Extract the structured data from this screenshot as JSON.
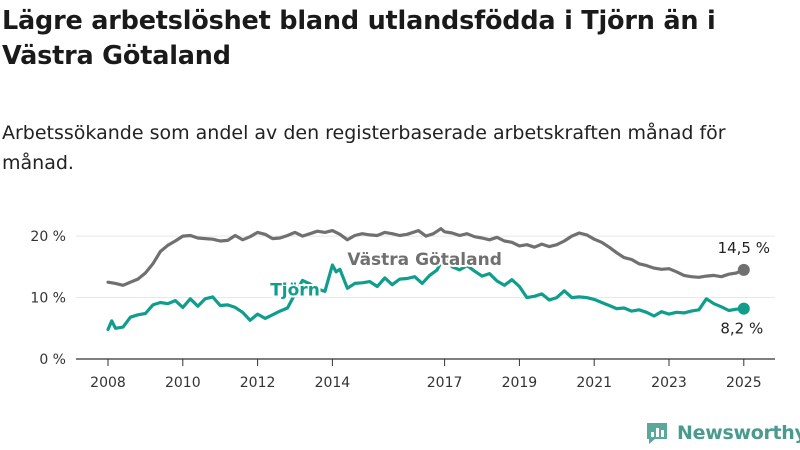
{
  "title": "Lägre arbetslöshet bland utlandsfödda i Tjörn än i Västra Götaland",
  "subtitle": "Arbetssökande som andel av den registerbaserade arbetskraften månad för månad.",
  "brand": {
    "name": "Newsworthy",
    "icon": "newsworthy-logo-icon"
  },
  "colors": {
    "vg": "#707070",
    "tjorn": "#0f9e8c",
    "grid": "#e8e8e8",
    "axis": "#333333"
  },
  "chart_data": {
    "type": "line",
    "xlim": [
      2008,
      2025.4
    ],
    "ylim": [
      0,
      22
    ],
    "yticks": [
      0,
      10,
      20
    ],
    "ytick_labels": [
      "0 %",
      "10 %",
      "20 %"
    ],
    "xticks": [
      2008,
      2010,
      2012,
      2014,
      2017,
      2019,
      2021,
      2023,
      2025
    ],
    "xtick_labels": [
      "2008",
      "2010",
      "2012",
      "2014",
      "2017",
      "2019",
      "2021",
      "2023",
      "2025"
    ],
    "grid": true,
    "series": [
      {
        "name": "Västra Götaland",
        "color": "#707070",
        "end_label": "14,5 %",
        "points": [
          [
            2008.0,
            12.5
          ],
          [
            2008.2,
            12.3
          ],
          [
            2008.4,
            12.0
          ],
          [
            2008.6,
            12.5
          ],
          [
            2008.8,
            13.0
          ],
          [
            2009.0,
            14.0
          ],
          [
            2009.2,
            15.5
          ],
          [
            2009.4,
            17.5
          ],
          [
            2009.6,
            18.5
          ],
          [
            2009.8,
            19.2
          ],
          [
            2010.0,
            20.0
          ],
          [
            2010.2,
            20.1
          ],
          [
            2010.4,
            19.7
          ],
          [
            2010.6,
            19.6
          ],
          [
            2010.8,
            19.5
          ],
          [
            2011.0,
            19.2
          ],
          [
            2011.2,
            19.3
          ],
          [
            2011.4,
            20.1
          ],
          [
            2011.6,
            19.4
          ],
          [
            2011.8,
            19.9
          ],
          [
            2012.0,
            20.6
          ],
          [
            2012.2,
            20.3
          ],
          [
            2012.4,
            19.6
          ],
          [
            2012.6,
            19.7
          ],
          [
            2012.8,
            20.1
          ],
          [
            2013.0,
            20.6
          ],
          [
            2013.2,
            20.0
          ],
          [
            2013.4,
            20.4
          ],
          [
            2013.6,
            20.8
          ],
          [
            2013.8,
            20.6
          ],
          [
            2014.0,
            20.9
          ],
          [
            2014.2,
            20.3
          ],
          [
            2014.4,
            19.4
          ],
          [
            2014.6,
            20.1
          ],
          [
            2014.8,
            20.4
          ],
          [
            2015.0,
            20.2
          ],
          [
            2015.2,
            20.1
          ],
          [
            2015.4,
            20.6
          ],
          [
            2015.6,
            20.4
          ],
          [
            2015.8,
            20.1
          ],
          [
            2016.0,
            20.3
          ],
          [
            2016.3,
            20.9
          ],
          [
            2016.5,
            20.0
          ],
          [
            2016.7,
            20.4
          ],
          [
            2016.9,
            21.2
          ],
          [
            2017.0,
            20.7
          ],
          [
            2017.2,
            20.5
          ],
          [
            2017.4,
            20.1
          ],
          [
            2017.6,
            20.4
          ],
          [
            2017.8,
            19.9
          ],
          [
            2018.0,
            19.7
          ],
          [
            2018.2,
            19.4
          ],
          [
            2018.4,
            19.8
          ],
          [
            2018.6,
            19.2
          ],
          [
            2018.8,
            19.0
          ],
          [
            2019.0,
            18.4
          ],
          [
            2019.2,
            18.6
          ],
          [
            2019.4,
            18.2
          ],
          [
            2019.6,
            18.7
          ],
          [
            2019.8,
            18.3
          ],
          [
            2020.0,
            18.6
          ],
          [
            2020.2,
            19.2
          ],
          [
            2020.4,
            20.0
          ],
          [
            2020.6,
            20.5
          ],
          [
            2020.8,
            20.2
          ],
          [
            2021.0,
            19.5
          ],
          [
            2021.2,
            19.0
          ],
          [
            2021.4,
            18.2
          ],
          [
            2021.6,
            17.3
          ],
          [
            2021.8,
            16.5
          ],
          [
            2022.0,
            16.2
          ],
          [
            2022.2,
            15.5
          ],
          [
            2022.4,
            15.2
          ],
          [
            2022.6,
            14.8
          ],
          [
            2022.8,
            14.6
          ],
          [
            2023.0,
            14.7
          ],
          [
            2023.2,
            14.2
          ],
          [
            2023.4,
            13.6
          ],
          [
            2023.6,
            13.4
          ],
          [
            2023.8,
            13.3
          ],
          [
            2024.0,
            13.5
          ],
          [
            2024.2,
            13.6
          ],
          [
            2024.4,
            13.4
          ],
          [
            2024.6,
            13.8
          ],
          [
            2024.8,
            14.0
          ],
          [
            2025.0,
            14.5
          ]
        ]
      },
      {
        "name": "Tjörn",
        "color": "#0f9e8c",
        "end_label": "8,2 %",
        "points": [
          [
            2008.0,
            4.8
          ],
          [
            2008.1,
            6.2
          ],
          [
            2008.2,
            5.0
          ],
          [
            2008.4,
            5.2
          ],
          [
            2008.6,
            6.8
          ],
          [
            2008.8,
            7.2
          ],
          [
            2009.0,
            7.4
          ],
          [
            2009.2,
            8.8
          ],
          [
            2009.4,
            9.2
          ],
          [
            2009.6,
            9.0
          ],
          [
            2009.8,
            9.5
          ],
          [
            2010.0,
            8.4
          ],
          [
            2010.2,
            9.8
          ],
          [
            2010.4,
            8.6
          ],
          [
            2010.6,
            9.8
          ],
          [
            2010.8,
            10.1
          ],
          [
            2011.0,
            8.7
          ],
          [
            2011.2,
            8.8
          ],
          [
            2011.4,
            8.4
          ],
          [
            2011.6,
            7.6
          ],
          [
            2011.8,
            6.3
          ],
          [
            2012.0,
            7.3
          ],
          [
            2012.2,
            6.6
          ],
          [
            2012.4,
            7.2
          ],
          [
            2012.6,
            7.8
          ],
          [
            2012.8,
            8.3
          ],
          [
            2013.0,
            10.6
          ],
          [
            2013.2,
            12.8
          ],
          [
            2013.4,
            12.2
          ],
          [
            2013.6,
            11.4
          ],
          [
            2013.8,
            11.0
          ],
          [
            2014.0,
            15.3
          ],
          [
            2014.1,
            14.2
          ],
          [
            2014.2,
            14.6
          ],
          [
            2014.4,
            11.5
          ],
          [
            2014.6,
            12.3
          ],
          [
            2014.8,
            12.4
          ],
          [
            2015.0,
            12.6
          ],
          [
            2015.2,
            11.8
          ],
          [
            2015.4,
            13.2
          ],
          [
            2015.6,
            12.1
          ],
          [
            2015.8,
            13.0
          ],
          [
            2016.0,
            13.1
          ],
          [
            2016.2,
            13.4
          ],
          [
            2016.4,
            12.3
          ],
          [
            2016.6,
            13.6
          ],
          [
            2016.8,
            14.5
          ],
          [
            2017.0,
            16.9
          ],
          [
            2017.2,
            15.0
          ],
          [
            2017.4,
            14.5
          ],
          [
            2017.6,
            15.2
          ],
          [
            2017.8,
            14.3
          ],
          [
            2018.0,
            13.5
          ],
          [
            2018.2,
            13.9
          ],
          [
            2018.4,
            12.7
          ],
          [
            2018.6,
            12.0
          ],
          [
            2018.8,
            12.9
          ],
          [
            2019.0,
            11.8
          ],
          [
            2019.2,
            10.0
          ],
          [
            2019.4,
            10.2
          ],
          [
            2019.6,
            10.6
          ],
          [
            2019.8,
            9.6
          ],
          [
            2020.0,
            10.0
          ],
          [
            2020.2,
            11.1
          ],
          [
            2020.4,
            10.0
          ],
          [
            2020.6,
            10.1
          ],
          [
            2020.8,
            10.0
          ],
          [
            2021.0,
            9.7
          ],
          [
            2021.2,
            9.2
          ],
          [
            2021.4,
            8.7
          ],
          [
            2021.6,
            8.2
          ],
          [
            2021.8,
            8.3
          ],
          [
            2022.0,
            7.8
          ],
          [
            2022.2,
            8.0
          ],
          [
            2022.4,
            7.6
          ],
          [
            2022.6,
            7.0
          ],
          [
            2022.8,
            7.7
          ],
          [
            2023.0,
            7.3
          ],
          [
            2023.2,
            7.6
          ],
          [
            2023.4,
            7.5
          ],
          [
            2023.6,
            7.8
          ],
          [
            2023.8,
            8.0
          ],
          [
            2024.0,
            9.8
          ],
          [
            2024.2,
            9.0
          ],
          [
            2024.4,
            8.5
          ],
          [
            2024.6,
            7.9
          ],
          [
            2024.8,
            8.1
          ],
          [
            2025.0,
            8.2
          ]
        ]
      }
    ]
  }
}
